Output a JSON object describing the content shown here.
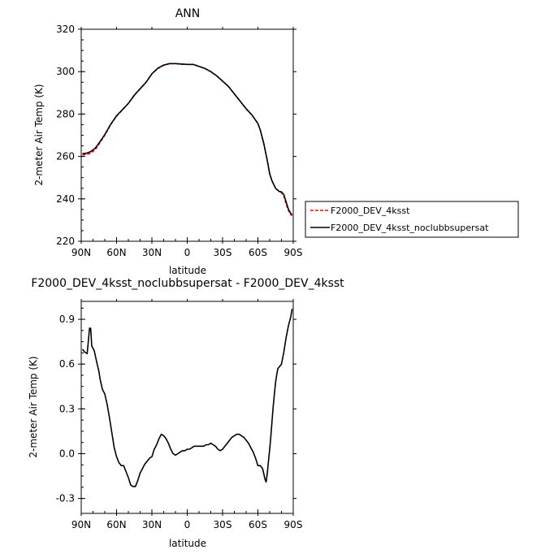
{
  "chart_data": [
    {
      "type": "line",
      "title": "ANN",
      "xlabel": "latitude",
      "ylabel": "2-meter Air Temp (K)",
      "xlim": [
        90,
        -90
      ],
      "ylim": [
        220,
        320
      ],
      "xticks": [
        90,
        60,
        30,
        0,
        -30,
        -60,
        -90
      ],
      "xtick_labels": [
        "90N",
        "60N",
        "30N",
        "0",
        "30S",
        "60S",
        "90S"
      ],
      "yticks": [
        220,
        240,
        260,
        280,
        300,
        320
      ],
      "ytick_labels": [
        "220",
        "240",
        "260",
        "280",
        "300",
        "320"
      ],
      "grid": false,
      "legend_position": "right",
      "series": [
        {
          "name": "F2000_DEV_4ksst",
          "color": "#ff0000",
          "dash": "dashed",
          "x": [
            89,
            85,
            82,
            78,
            75,
            70,
            65,
            60,
            55,
            50,
            45,
            40,
            35,
            30,
            25,
            20,
            15,
            10,
            5,
            0,
            -5,
            -10,
            -15,
            -20,
            -25,
            -30,
            -35,
            -40,
            -45,
            -50,
            -55,
            -60,
            -62,
            -65,
            -68,
            -70,
            -72,
            -75,
            -78,
            -80,
            -82,
            -84,
            -86,
            -88,
            -89
          ],
          "y": [
            260.7,
            261.0,
            261.5,
            263.3,
            265.8,
            270.0,
            275.0,
            279.0,
            282.0,
            285.0,
            289.0,
            292.0,
            295.0,
            299.0,
            301.5,
            303.0,
            303.8,
            303.8,
            303.5,
            303.4,
            303.4,
            302.5,
            301.5,
            300.0,
            298.0,
            295.5,
            293.0,
            289.5,
            286.0,
            282.5,
            279.5,
            275.5,
            272.5,
            266.0,
            258.0,
            252.0,
            248.5,
            245.0,
            243.5,
            243.0,
            241.5,
            237.5,
            234.5,
            232.5,
            232.0
          ]
        },
        {
          "name": "F2000_DEV_4ksst_noclubbsupersat",
          "color": "#000000",
          "dash": "solid",
          "x": [
            89,
            85,
            82,
            78,
            75,
            70,
            65,
            60,
            55,
            50,
            45,
            40,
            35,
            30,
            25,
            20,
            15,
            10,
            5,
            0,
            -5,
            -10,
            -15,
            -20,
            -25,
            -30,
            -35,
            -40,
            -45,
            -50,
            -55,
            -60,
            -62,
            -65,
            -68,
            -70,
            -72,
            -75,
            -78,
            -80,
            -82,
            -84,
            -86,
            -88,
            -89
          ],
          "y": [
            261.3,
            261.6,
            262.3,
            264.0,
            266.3,
            270.3,
            275.2,
            279.2,
            282.1,
            285.0,
            288.8,
            291.9,
            295.0,
            299.0,
            301.6,
            303.1,
            303.8,
            303.8,
            303.6,
            303.4,
            303.4,
            302.5,
            301.5,
            300.0,
            298.0,
            295.5,
            293.0,
            289.5,
            286.0,
            282.5,
            279.5,
            275.5,
            272.5,
            266.0,
            257.9,
            251.8,
            248.4,
            245.0,
            243.5,
            243.3,
            242.0,
            238.5,
            235.0,
            233.0,
            232.6
          ]
        }
      ]
    },
    {
      "type": "line",
      "title": "F2000_DEV_4ksst_noclubbsupersat - F2000_DEV_4ksst",
      "xlabel": "latitude",
      "ylabel": "2-meter Air Temp (K)",
      "xlim": [
        90,
        -90
      ],
      "ylim": [
        -0.4,
        1.02
      ],
      "xticks": [
        90,
        60,
        30,
        0,
        -30,
        -60,
        -90
      ],
      "xtick_labels": [
        "90N",
        "60N",
        "30N",
        "0",
        "30S",
        "60S",
        "90S"
      ],
      "yticks": [
        -0.3,
        0.0,
        0.3,
        0.6,
        0.9
      ],
      "ytick_labels": [
        "-0.3",
        "0.0",
        "0.3",
        "0.6",
        "0.9"
      ],
      "grid": false,
      "series": [
        {
          "color": "#000000",
          "dash": "solid",
          "x": [
            89,
            87,
            85,
            84,
            83,
            82,
            81,
            79,
            77,
            75,
            74,
            72,
            70,
            68,
            66,
            64,
            62,
            60,
            58,
            56,
            54,
            52,
            50,
            48,
            46,
            44,
            42,
            40,
            38,
            36,
            34,
            32,
            30,
            28,
            26,
            24,
            22,
            20,
            18,
            16,
            14,
            12,
            10,
            8,
            6,
            4,
            2,
            0,
            -2,
            -4,
            -6,
            -8,
            -10,
            -12,
            -14,
            -16,
            -18,
            -20,
            -22,
            -24,
            -26,
            -28,
            -30,
            -32,
            -34,
            -36,
            -38,
            -40,
            -42,
            -44,
            -46,
            -48,
            -50,
            -52,
            -54,
            -56,
            -58,
            -60,
            -62,
            -64,
            -66,
            -67,
            -68,
            -69,
            -70,
            -71,
            -72,
            -73,
            -74,
            -75,
            -76,
            -77,
            -78,
            -80,
            -82,
            -84,
            -86,
            -88,
            -89
          ],
          "y": [
            0.7,
            0.68,
            0.67,
            0.75,
            0.84,
            0.84,
            0.72,
            0.69,
            0.62,
            0.55,
            0.5,
            0.43,
            0.4,
            0.33,
            0.24,
            0.14,
            0.04,
            -0.02,
            -0.06,
            -0.08,
            -0.08,
            -0.12,
            -0.16,
            -0.21,
            -0.22,
            -0.22,
            -0.18,
            -0.13,
            -0.1,
            -0.07,
            -0.05,
            -0.03,
            -0.02,
            0.03,
            0.06,
            0.1,
            0.13,
            0.12,
            0.1,
            0.07,
            0.03,
            0.0,
            -0.01,
            0.0,
            0.01,
            0.02,
            0.02,
            0.03,
            0.03,
            0.04,
            0.05,
            0.05,
            0.05,
            0.05,
            0.05,
            0.06,
            0.06,
            0.07,
            0.06,
            0.05,
            0.03,
            0.02,
            0.03,
            0.05,
            0.07,
            0.09,
            0.11,
            0.12,
            0.13,
            0.13,
            0.12,
            0.11,
            0.09,
            0.07,
            0.04,
            0.01,
            -0.03,
            -0.08,
            -0.08,
            -0.1,
            -0.17,
            -0.19,
            -0.13,
            -0.05,
            0.03,
            0.12,
            0.22,
            0.32,
            0.4,
            0.48,
            0.53,
            0.57,
            0.58,
            0.6,
            0.68,
            0.78,
            0.86,
            0.92,
            0.97
          ]
        }
      ]
    }
  ],
  "legend": {
    "entries": [
      {
        "label": "F2000_DEV_4ksst",
        "color": "#ff0000",
        "dash": "dashed"
      },
      {
        "label": "F2000_DEV_4ksst_noclubbsupersat",
        "color": "#000000",
        "dash": "solid"
      }
    ]
  }
}
